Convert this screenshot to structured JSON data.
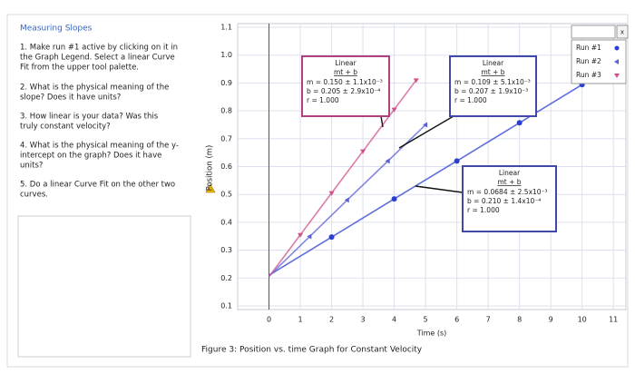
{
  "panel": {
    "title": "Measuring Slopes",
    "items": [
      [
        "1.  Make run #1 active by clicking on it in",
        "the Graph Legend.  Select a linear Curve",
        "Fit from the upper tool palette."
      ],
      [
        "2.  What is the physical meaning of the",
        "slope?  Does it have units?"
      ],
      [
        "3.  How linear is your data?  Was this",
        "truly constant velocity?"
      ],
      [
        "4.  What is the physical meaning of the y-",
        "intercept on the graph?  Does it have",
        "units?"
      ],
      [
        "5.  Do a linear Curve Fit on the other two",
        "curves."
      ]
    ]
  },
  "chart_data": {
    "type": "scatter",
    "xlabel": "Time (s)",
    "ylabel": "Position (m)",
    "xlim": [
      -1,
      11.4
    ],
    "ylim": [
      0.1,
      1.1
    ],
    "xticks": [
      0,
      1,
      2,
      3,
      4,
      5,
      6,
      7,
      8,
      9,
      10,
      11
    ],
    "yticks": [
      0.1,
      0.2,
      0.3,
      0.4,
      0.5,
      0.6,
      0.7,
      0.8,
      0.9,
      {
        "value": 1,
        "label": "1.0"
      },
      1.1
    ],
    "grid": true,
    "legend": "top-right",
    "legend_close": "x",
    "series": [
      {
        "name": "Run #1",
        "color": "#2a3fd0",
        "marker": "circle",
        "x": [
          0,
          2,
          4,
          6,
          8,
          10
        ],
        "values": [
          0.21,
          0.347,
          0.484,
          0.62,
          0.757,
          0.894
        ]
      },
      {
        "name": "Run #2",
        "color": "#5a5fd8",
        "marker": "triangle-left",
        "x": [
          0,
          1.3,
          2.5,
          3.8,
          5.0
        ],
        "values": [
          0.207,
          0.349,
          0.48,
          0.62,
          0.75
        ]
      },
      {
        "name": "Run #3",
        "color": "#d0508c",
        "marker": "triangle-down",
        "x": [
          0,
          1,
          2,
          3,
          4,
          4.7
        ],
        "values": [
          0.205,
          0.355,
          0.505,
          0.655,
          0.805,
          0.91
        ]
      }
    ],
    "annotations": [
      {
        "title": "Linear",
        "formula": "mt + b",
        "m": "m = 0.150 ± 1.1x10⁻³",
        "b": "b = 0.205 ± 2.9x10⁻⁴",
        "r": "r = 1.000",
        "color": "#b04080"
      },
      {
        "title": "Linear",
        "formula": "mt + b",
        "m": "m = 0.109 ± 5.1x10⁻³",
        "b": "b = 0.207 ± 1.9x10⁻³",
        "r": "r = 1.000",
        "color": "#4048a8"
      },
      {
        "title": "Linear",
        "formula": "mt + b",
        "m": "m = 0.0684 ± 2.5x10⁻³",
        "b": "b = 0.210 ± 1.4x10⁻⁴",
        "r": "r = 1.000",
        "color": "#4048a8"
      }
    ]
  },
  "caption": "Figure 3: Position vs. time Graph for Constant Velocity"
}
